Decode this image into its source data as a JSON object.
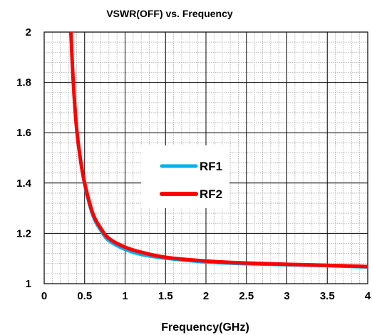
{
  "chart_data": {
    "type": "line",
    "title": "VSWR(OFF) vs. Frequency",
    "xlabel": "Frequency(GHz)",
    "ylabel": "",
    "xlim": [
      0,
      4
    ],
    "ylim": [
      1,
      2
    ],
    "xticks": [
      "0",
      "0.5",
      "1",
      "1.5",
      "2",
      "2.5",
      "3",
      "3.5",
      "4"
    ],
    "yticks": [
      "1",
      "1.2",
      "1.4",
      "1.6",
      "1.8",
      "2"
    ],
    "grid": true,
    "legend_position": "center",
    "series": [
      {
        "name": "RF1",
        "color": "#00b0f0",
        "x": [
          0.33,
          0.36,
          0.4,
          0.45,
          0.5,
          0.6,
          0.7,
          0.8,
          1.0,
          1.2,
          1.5,
          2.0,
          2.5,
          3.0,
          3.5,
          4.0
        ],
        "y": [
          2.0,
          1.8,
          1.62,
          1.49,
          1.39,
          1.27,
          1.21,
          1.17,
          1.135,
          1.115,
          1.1,
          1.085,
          1.078,
          1.074,
          1.07,
          1.065
        ]
      },
      {
        "name": "RF2",
        "color": "#ff0000",
        "x": [
          0.33,
          0.36,
          0.4,
          0.45,
          0.5,
          0.6,
          0.7,
          0.8,
          1.0,
          1.2,
          1.5,
          2.0,
          2.5,
          3.0,
          3.5,
          4.0
        ],
        "y": [
          2.0,
          1.8,
          1.62,
          1.49,
          1.4,
          1.28,
          1.22,
          1.18,
          1.145,
          1.125,
          1.105,
          1.09,
          1.082,
          1.077,
          1.073,
          1.068
        ]
      }
    ]
  }
}
